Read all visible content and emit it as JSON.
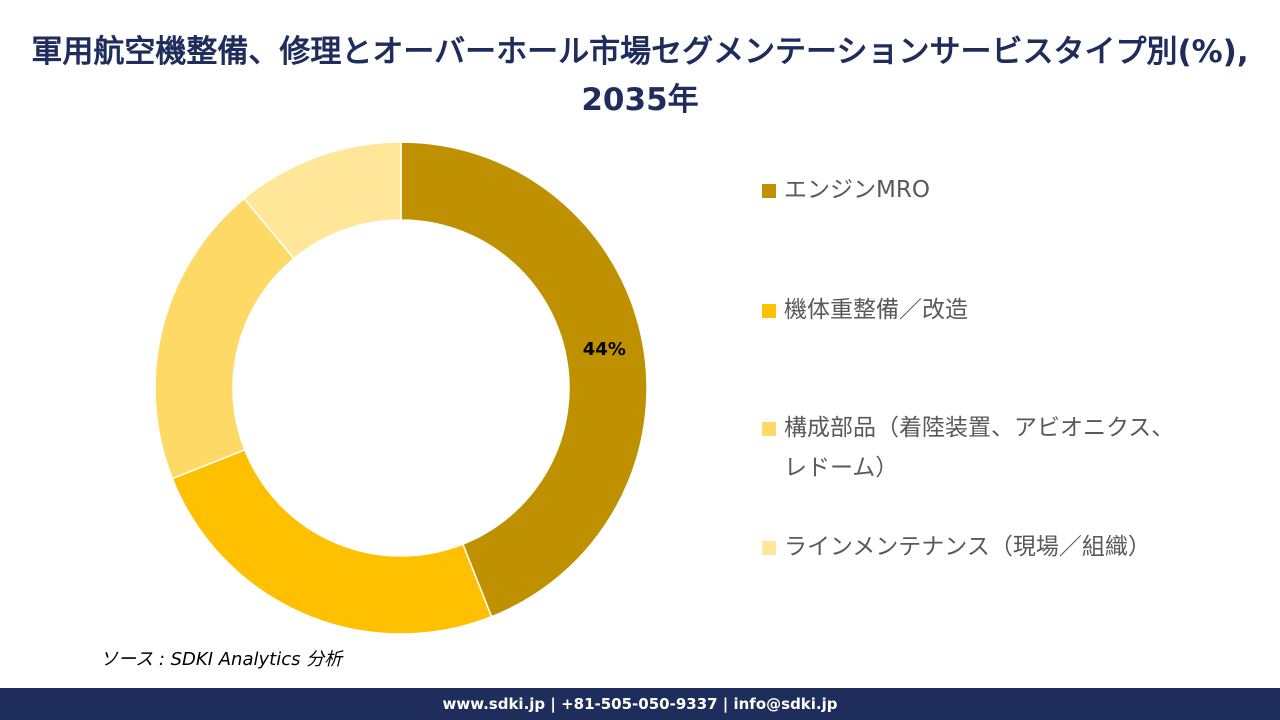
{
  "chart_data": {
    "type": "donut",
    "title": "軍用航空機整備、修理とオーバーホール市場セグメンテーションサービスタイプ別(%), 2035年",
    "categories": [
      "エンジンMRO",
      "機体重整備／改造",
      "構成部品（着陸装置、アビオニクス、レドーム）",
      "ラインメンテナンス（現場／組織）"
    ],
    "values": [
      44,
      25,
      20,
      11
    ],
    "value_labels": [
      "44%",
      null,
      null,
      null
    ],
    "colors": [
      "#bf9000",
      "#ffc000",
      "#ffd966",
      "#ffe699"
    ]
  },
  "source": "ソース : SDKI Analytics 分析",
  "footer": "www.sdki.jp | +81-505-050-9337 | info@sdki.jp"
}
